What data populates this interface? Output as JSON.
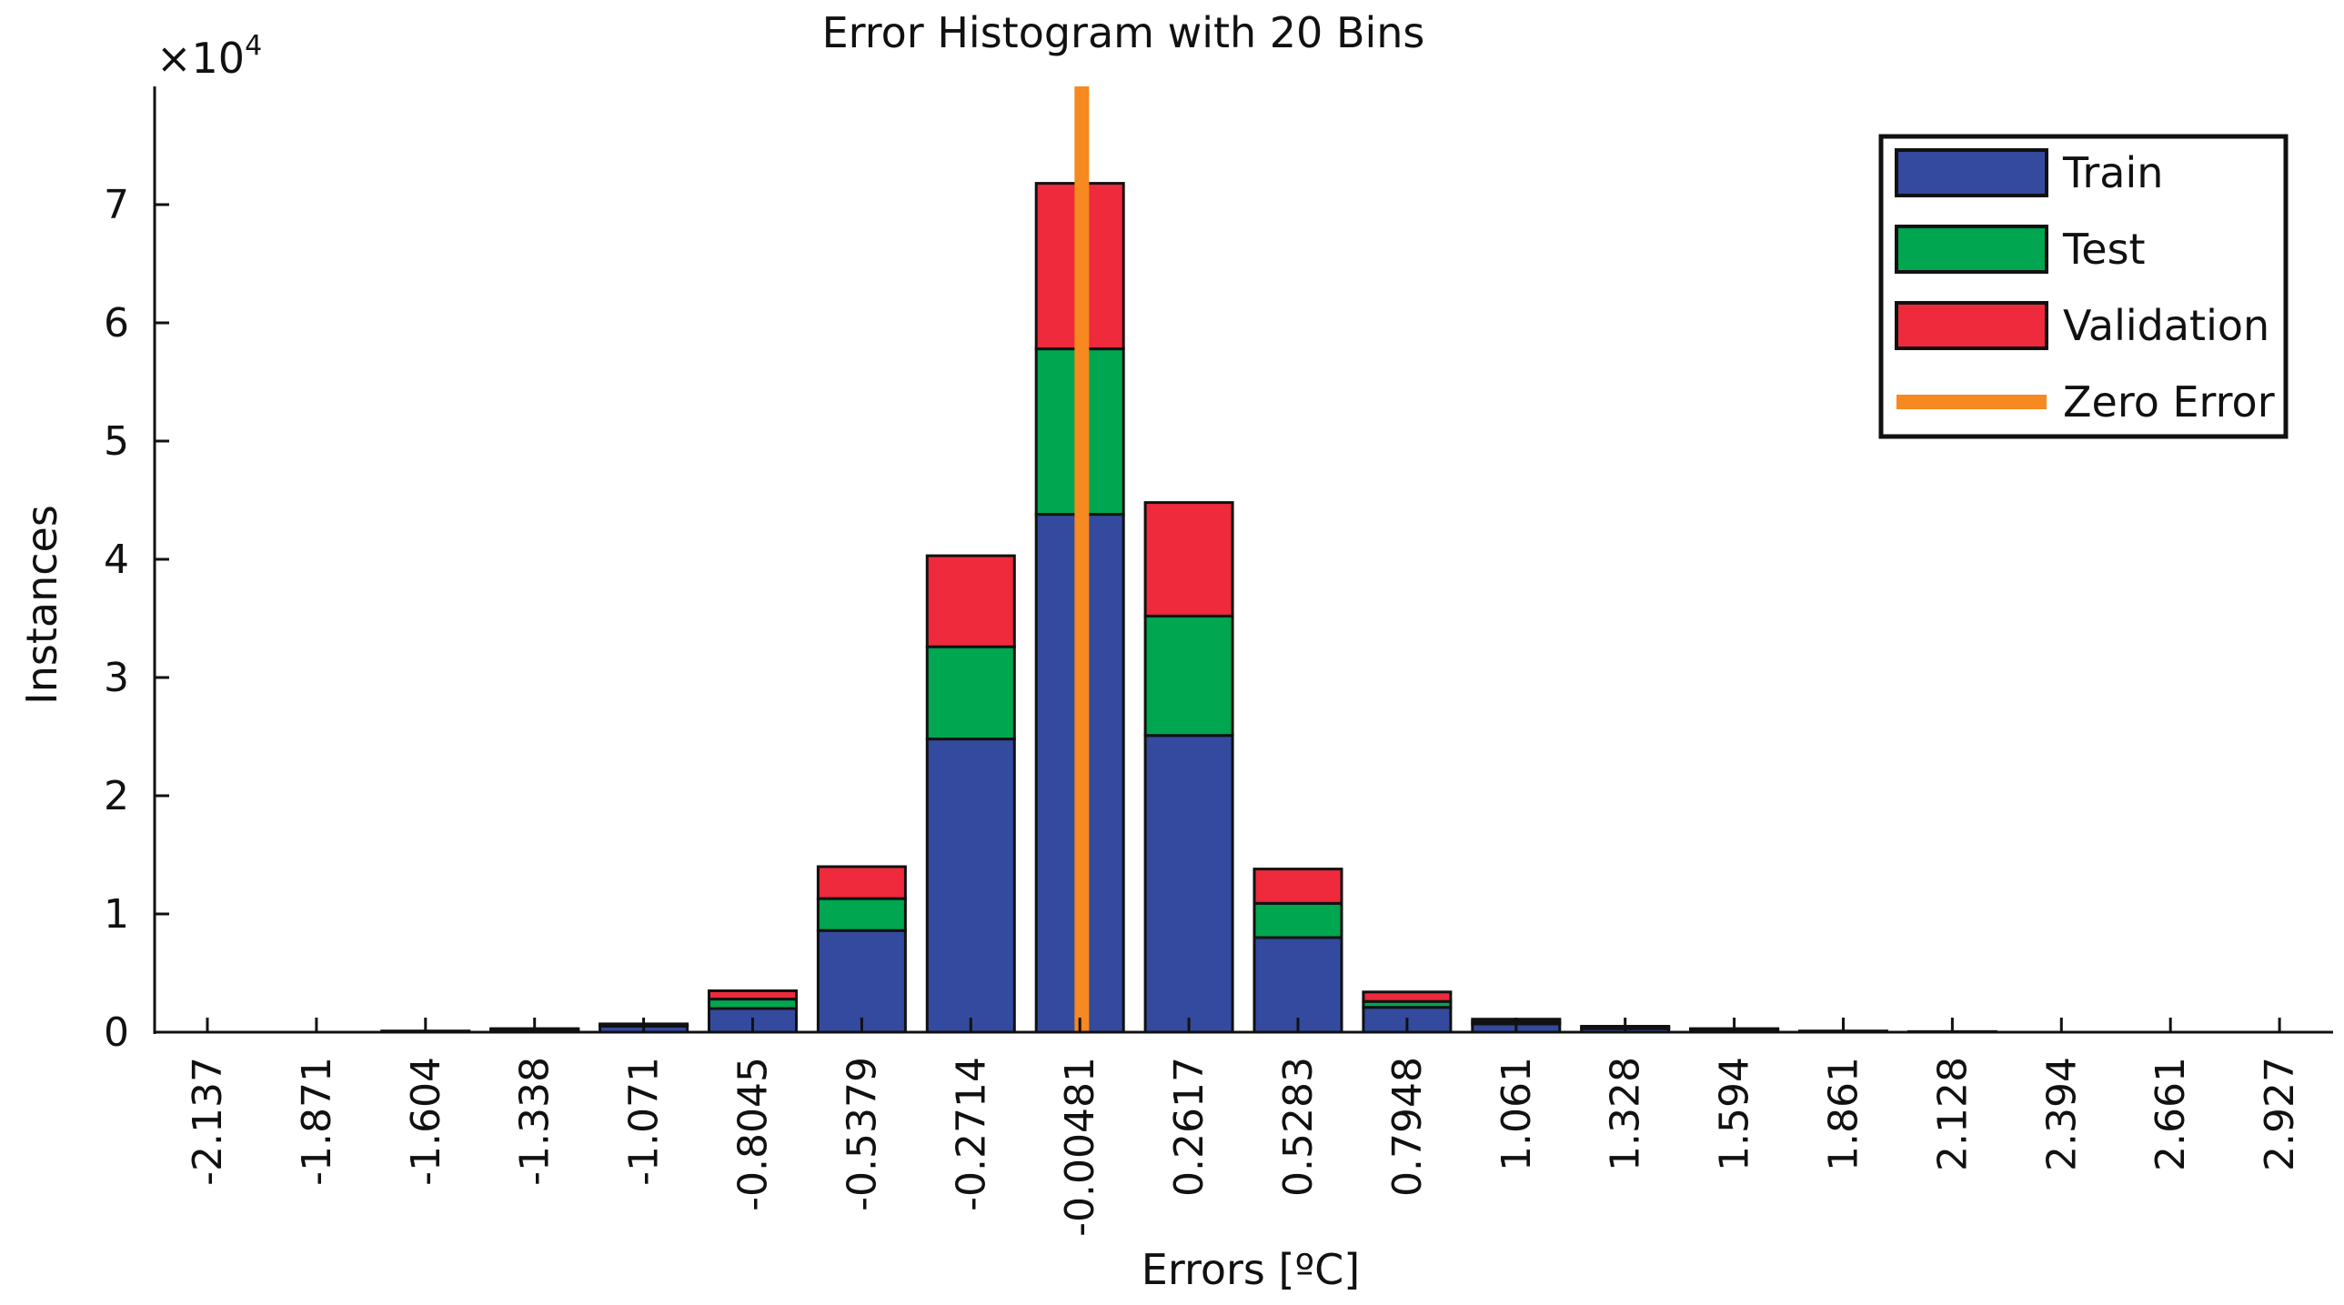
{
  "chart_data": {
    "type": "bar",
    "stacked": true,
    "title": "Error Histogram with 20 Bins",
    "xlabel": "Errors [ºC]",
    "ylabel": "Instances",
    "y_multiplier": "×10",
    "y_multiplier_exponent": "4",
    "ylim": [
      0,
      8
    ],
    "yticks": [
      "0",
      "1",
      "2",
      "3",
      "4",
      "5",
      "6",
      "7"
    ],
    "categories": [
      "-2.137",
      "-1.871",
      "-1.604",
      "-1.338",
      "-1.071",
      "-0.8045",
      "-0.5379",
      "-0.2714",
      "-0.00481",
      "0.2617",
      "0.5283",
      "0.7948",
      "1.061",
      "1.328",
      "1.594",
      "1.861",
      "2.128",
      "2.394",
      "2.661",
      "2.927"
    ],
    "series": [
      {
        "name": "Train",
        "color": "#334a9f",
        "values": [
          0,
          0,
          0.01,
          0.02,
          0.05,
          0.2,
          0.86,
          2.48,
          4.38,
          2.51,
          0.8,
          0.21,
          0.07,
          0.03,
          0.02,
          0.01,
          0.005,
          0,
          0,
          0
        ]
      },
      {
        "name": "Test",
        "color": "#00a650",
        "values": [
          0,
          0,
          0,
          0.005,
          0.01,
          0.08,
          0.27,
          0.78,
          1.4,
          1.01,
          0.29,
          0.05,
          0.02,
          0.01,
          0.005,
          0,
          0,
          0,
          0,
          0
        ]
      },
      {
        "name": "Validation",
        "color": "#ee2a3c",
        "values": [
          0,
          0,
          0,
          0.005,
          0.01,
          0.07,
          0.27,
          0.77,
          1.4,
          0.96,
          0.29,
          0.08,
          0.02,
          0.01,
          0.005,
          0,
          0,
          0,
          0,
          0
        ]
      }
    ],
    "reference_line": {
      "name": "Zero Error",
      "x": 0,
      "color": "#f6891f"
    },
    "legend_position": "top-right",
    "grid": false
  }
}
